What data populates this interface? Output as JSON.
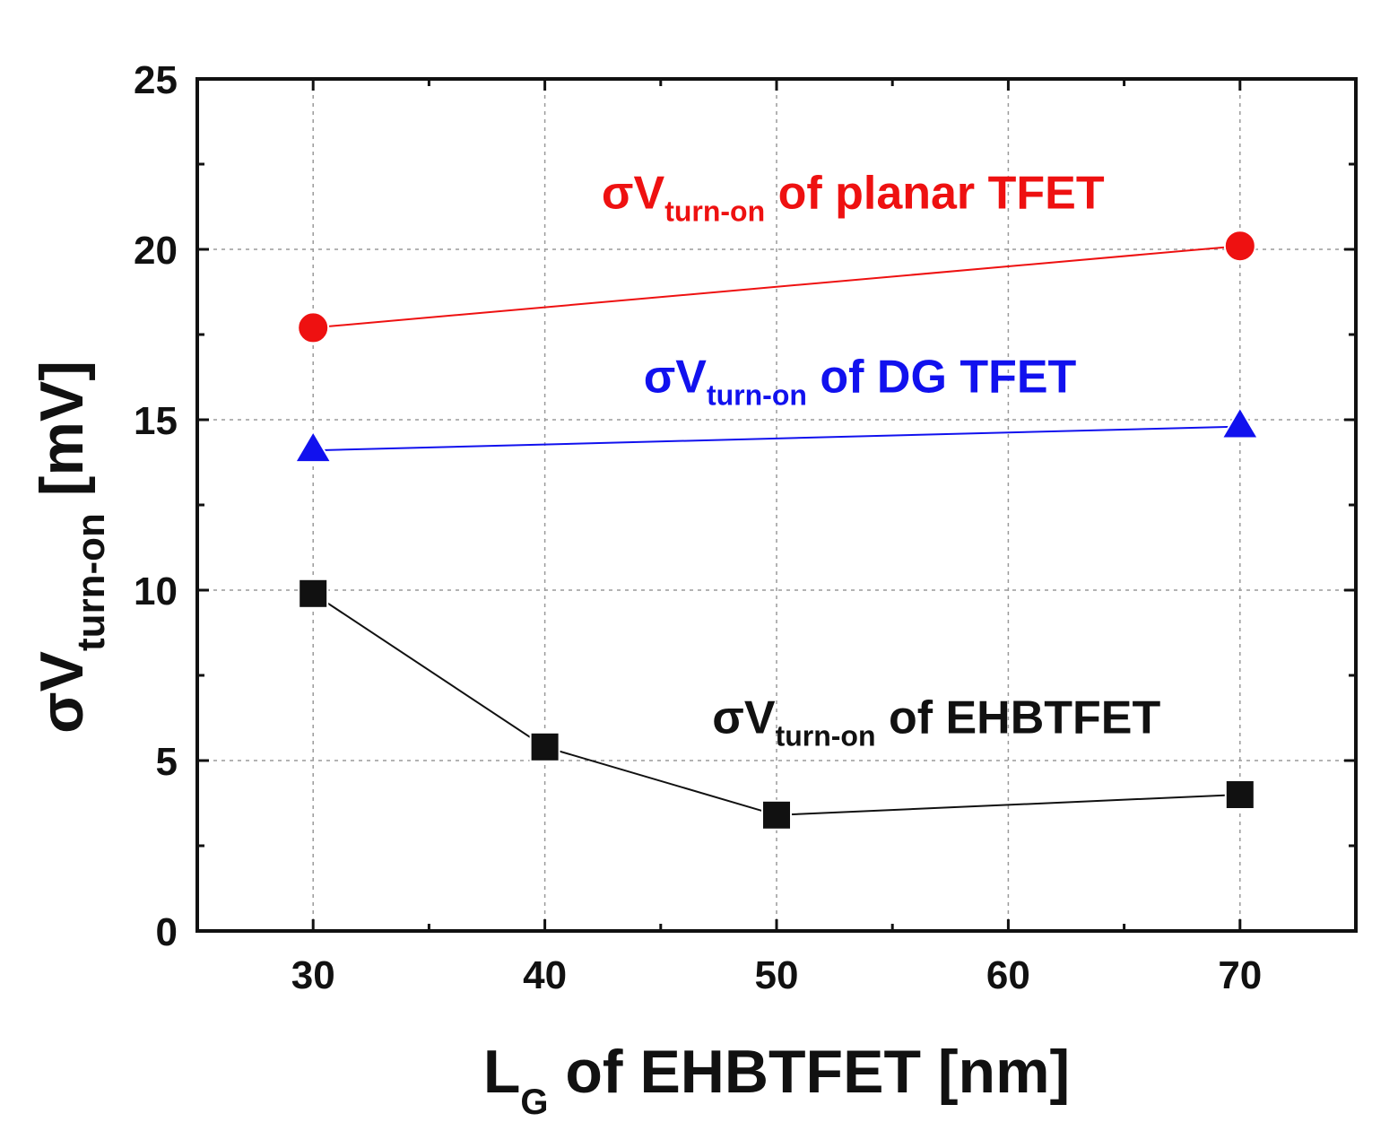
{
  "chart_data": {
    "type": "line",
    "xlabel": {
      "main": "L",
      "sub": "G",
      "rest": " of EHBTFET [nm]"
    },
    "ylabel": {
      "main": "σV",
      "sub": "turn-on",
      "rest": " [mV]"
    },
    "xlim": [
      25,
      75
    ],
    "ylim": [
      0,
      25
    ],
    "x_ticks": [
      30,
      40,
      50,
      60,
      70
    ],
    "y_ticks": [
      0,
      5,
      10,
      15,
      20,
      25
    ],
    "x_minor_ticks": [
      35,
      45,
      55,
      65
    ],
    "y_minor_ticks": [
      2.5,
      7.5,
      12.5,
      17.5,
      22.5
    ],
    "grid": true,
    "series": [
      {
        "name": "planar TFET",
        "marker": "circle",
        "color": "#ee1111",
        "points": [
          {
            "x": 30,
            "y": 17.7
          },
          {
            "x": 70,
            "y": 20.1
          }
        ]
      },
      {
        "name": "DG TFET",
        "marker": "triangle",
        "color": "#1111ee",
        "points": [
          {
            "x": 30,
            "y": 14.1
          },
          {
            "x": 70,
            "y": 14.8
          }
        ]
      },
      {
        "name": "EHBTFET",
        "marker": "square",
        "color": "#111111",
        "points": [
          {
            "x": 30,
            "y": 9.9
          },
          {
            "x": 40,
            "y": 5.4
          },
          {
            "x": 50,
            "y": 3.4
          },
          {
            "x": 70,
            "y": 4.0
          }
        ]
      }
    ],
    "annotations": [
      {
        "main": "σV",
        "sub": "turn-on",
        "rest": " of planar TFET",
        "color": "#ee1111",
        "x": 53.3,
        "y": 21.2
      },
      {
        "main": "σV",
        "sub": "turn-on",
        "rest": " of DG TFET",
        "color": "#1111ee",
        "x": 53.6,
        "y": 15.8
      },
      {
        "main": "σV",
        "sub": "turn-on",
        "rest": " of EHBTFET",
        "color": "#111111",
        "x": 56.9,
        "y": 5.8
      }
    ]
  }
}
